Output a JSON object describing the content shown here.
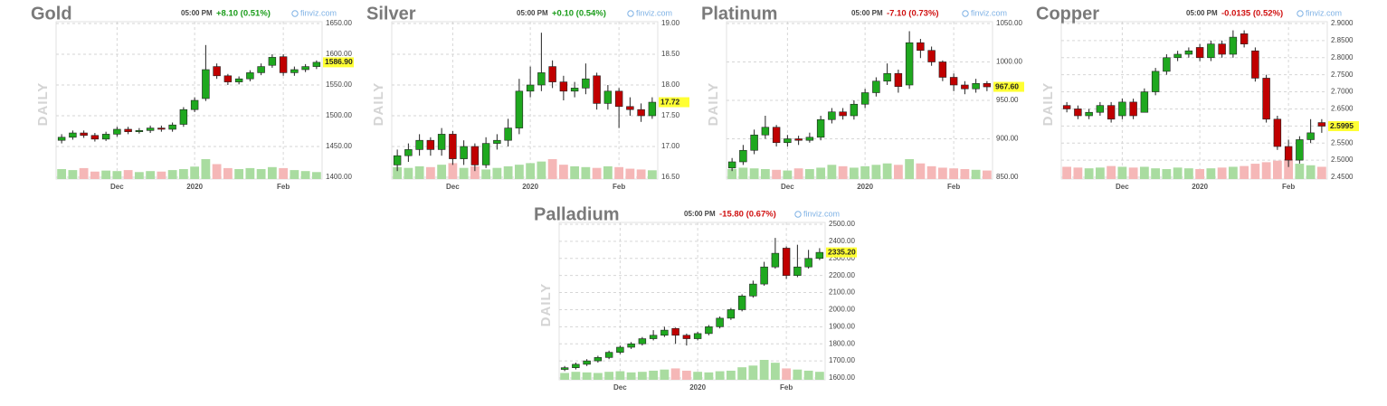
{
  "chart_data": [
    {
      "type": "candlestick",
      "title": "Gold",
      "time": "05:00 PM",
      "change": "+8.10 (0.51%)",
      "change_color": "#1a9c1a",
      "source": "finviz.com",
      "side_label": "DAILY",
      "up_color": "#1fa81f",
      "down_color": "#c00000",
      "volume_up_color": "#a9dca0",
      "volume_down_color": "#f5b7b7",
      "categories": [
        null,
        null,
        null,
        null,
        null,
        "Dec",
        null,
        null,
        null,
        null,
        null,
        null,
        "2020",
        null,
        null,
        null,
        null,
        null,
        null,
        null,
        "Feb",
        null,
        null,
        null
      ],
      "open": [
        1460,
        1465,
        1472,
        1468,
        1462,
        1470,
        1478,
        1474,
        1476,
        1480,
        1478,
        1486,
        1510,
        1528,
        1580,
        1565,
        1555,
        1560,
        1570,
        1582,
        1596,
        1570,
        1575,
        1580
      ],
      "high": [
        1470,
        1476,
        1476,
        1472,
        1474,
        1482,
        1482,
        1480,
        1484,
        1484,
        1489,
        1514,
        1530,
        1615,
        1585,
        1568,
        1564,
        1574,
        1585,
        1600,
        1600,
        1580,
        1584,
        1590
      ],
      "low": [
        1455,
        1461,
        1464,
        1458,
        1459,
        1466,
        1470,
        1471,
        1472,
        1474,
        1474,
        1482,
        1506,
        1524,
        1560,
        1550,
        1551,
        1556,
        1566,
        1578,
        1565,
        1565,
        1571,
        1576
      ],
      "close": [
        1465,
        1472,
        1468,
        1462,
        1470,
        1478,
        1474,
        1476,
        1480,
        1478,
        1485,
        1510,
        1525,
        1575,
        1565,
        1555,
        1560,
        1570,
        1580,
        1595,
        1570,
        1575,
        1580,
        1586.9
      ],
      "volume": [
        20,
        18,
        22,
        15,
        17,
        16,
        18,
        14,
        16,
        15,
        18,
        20,
        25,
        40,
        30,
        22,
        20,
        22,
        20,
        24,
        22,
        18,
        16,
        14
      ],
      "last": {
        "value": 1586.9,
        "label": "1586.90"
      },
      "ylim": [
        1400,
        1650
      ],
      "yticks": [
        {
          "value": 1400,
          "label": "1400.00"
        },
        {
          "value": 1450,
          "label": "1450.00"
        },
        {
          "value": 1500,
          "label": "1500.00"
        },
        {
          "value": 1550,
          "label": "1550.00"
        },
        {
          "value": 1600,
          "label": "1600.00"
        },
        {
          "value": 1650,
          "label": "1650.00"
        }
      ]
    },
    {
      "type": "candlestick",
      "title": "Silver",
      "time": "05:00 PM",
      "change": "+0.10 (0.54%)",
      "change_color": "#1a9c1a",
      "source": "finviz.com",
      "side_label": "DAILY",
      "up_color": "#1fa81f",
      "down_color": "#c00000",
      "volume_up_color": "#a9dca0",
      "volume_down_color": "#f5b7b7",
      "categories": [
        null,
        null,
        null,
        null,
        null,
        "Dec",
        null,
        null,
        null,
        null,
        null,
        null,
        "2020",
        null,
        null,
        null,
        null,
        null,
        null,
        null,
        "Feb",
        null,
        null,
        null
      ],
      "open": [
        16.7,
        16.85,
        16.95,
        17.1,
        16.95,
        17.2,
        16.8,
        17.0,
        16.7,
        17.05,
        17.1,
        17.3,
        17.9,
        18.0,
        18.3,
        18.05,
        17.9,
        17.95,
        18.15,
        17.7,
        17.9,
        17.65,
        17.6,
        17.5
      ],
      "high": [
        16.95,
        17.05,
        17.2,
        17.15,
        17.3,
        17.25,
        17.1,
        17.05,
        17.15,
        17.2,
        17.45,
        18.1,
        18.3,
        18.85,
        18.4,
        18.15,
        18.05,
        18.35,
        18.2,
        18.0,
        17.95,
        17.8,
        17.7,
        17.8
      ],
      "low": [
        16.6,
        16.75,
        16.85,
        16.85,
        16.85,
        16.7,
        16.7,
        16.6,
        16.65,
        16.95,
        17.0,
        17.2,
        17.8,
        17.9,
        17.95,
        17.75,
        17.8,
        17.85,
        17.6,
        17.6,
        17.3,
        17.5,
        17.4,
        17.45
      ],
      "close": [
        16.85,
        16.95,
        17.1,
        16.95,
        17.2,
        16.8,
        17.0,
        16.7,
        17.05,
        17.1,
        17.3,
        17.9,
        18.0,
        18.2,
        18.05,
        17.9,
        17.95,
        18.1,
        17.7,
        17.9,
        17.65,
        17.6,
        17.5,
        17.72
      ],
      "volume": [
        15,
        14,
        16,
        15,
        18,
        20,
        14,
        16,
        12,
        14,
        16,
        18,
        20,
        22,
        25,
        18,
        16,
        15,
        14,
        16,
        15,
        13,
        12,
        11
      ],
      "last": 17.72,
      "ylim": [
        16.5,
        19
      ],
      "yticks": [
        {
          "value": 16.5,
          "label": "16.50"
        },
        {
          "value": 17,
          "label": "17.00"
        },
        {
          "value": 17.5,
          "label": "17.50"
        },
        {
          "value": 18,
          "label": "18.00"
        },
        {
          "value": 18.5,
          "label": "18.50"
        },
        {
          "value": 19,
          "label": "19.00"
        }
      ]
    },
    {
      "type": "candlestick",
      "title": "Platinum",
      "time": "05:00 PM",
      "change": "-7.10 (0.73%)",
      "change_color": "#d01010",
      "source": "finviz.com",
      "side_label": "DAILY",
      "up_color": "#1fa81f",
      "down_color": "#c00000",
      "volume_up_color": "#a9dca0",
      "volume_down_color": "#f5b7b7",
      "categories": [
        null,
        null,
        null,
        null,
        null,
        "Dec",
        null,
        null,
        null,
        null,
        null,
        null,
        "2020",
        null,
        null,
        null,
        null,
        null,
        null,
        null,
        "Feb",
        null,
        null,
        null
      ],
      "open": [
        862,
        870,
        885,
        905,
        915,
        895,
        900,
        898,
        902,
        925,
        935,
        930,
        945,
        960,
        975,
        985,
        970,
        1025,
        1015,
        1000,
        980,
        970,
        965,
        972
      ],
      "high": [
        875,
        892,
        912,
        930,
        918,
        905,
        904,
        908,
        930,
        940,
        940,
        950,
        965,
        980,
        998,
        990,
        1040,
        1030,
        1020,
        1002,
        985,
        975,
        978,
        975
      ],
      "low": [
        858,
        866,
        880,
        900,
        890,
        890,
        892,
        895,
        898,
        920,
        925,
        925,
        940,
        955,
        970,
        960,
        965,
        1005,
        995,
        975,
        962,
        958,
        960,
        962
      ],
      "close": [
        870,
        885,
        905,
        915,
        895,
        900,
        898,
        902,
        925,
        935,
        930,
        945,
        960,
        975,
        985,
        968,
        1025,
        1015,
        1000,
        980,
        970,
        965,
        972,
        967.6
      ],
      "volume": [
        14,
        16,
        15,
        14,
        13,
        12,
        15,
        14,
        16,
        20,
        18,
        16,
        18,
        20,
        22,
        20,
        28,
        22,
        18,
        16,
        15,
        14,
        13,
        12
      ],
      "last": {
        "value": 967.6,
        "label": "967.60"
      },
      "ylim": [
        850,
        1050
      ],
      "yticks": [
        {
          "value": 850,
          "label": "850.00"
        },
        {
          "value": 900,
          "label": "900.00"
        },
        {
          "value": 950,
          "label": "950.00"
        },
        {
          "value": 1000,
          "label": "1000.00"
        },
        {
          "value": 1050,
          "label": "1050.00"
        }
      ]
    },
    {
      "type": "candlestick",
      "title": "Copper",
      "time": "05:00 PM",
      "change": "-0.0135 (0.52%)",
      "change_color": "#d01010",
      "source": "finviz.com",
      "side_label": "DAILY",
      "up_color": "#1fa81f",
      "down_color": "#c00000",
      "volume_up_color": "#a9dca0",
      "volume_down_color": "#f5b7b7",
      "categories": [
        null,
        null,
        null,
        null,
        null,
        "Dec",
        null,
        null,
        null,
        null,
        null,
        null,
        "2020",
        null,
        null,
        null,
        null,
        null,
        null,
        null,
        "Feb",
        null,
        null,
        null
      ],
      "open": [
        2.66,
        2.65,
        2.63,
        2.64,
        2.66,
        2.63,
        2.67,
        2.64,
        2.7,
        2.76,
        2.8,
        2.81,
        2.83,
        2.8,
        2.84,
        2.81,
        2.87,
        2.82,
        2.74,
        2.62,
        2.54,
        2.5,
        2.56,
        2.61
      ],
      "high": [
        2.67,
        2.66,
        2.65,
        2.67,
        2.67,
        2.68,
        2.68,
        2.71,
        2.77,
        2.81,
        2.82,
        2.83,
        2.84,
        2.85,
        2.85,
        2.88,
        2.88,
        2.83,
        2.75,
        2.63,
        2.56,
        2.57,
        2.62,
        2.62
      ],
      "low": [
        2.64,
        2.62,
        2.62,
        2.63,
        2.61,
        2.62,
        2.62,
        2.64,
        2.69,
        2.75,
        2.79,
        2.8,
        2.79,
        2.79,
        2.8,
        2.8,
        2.83,
        2.73,
        2.61,
        2.53,
        2.48,
        2.49,
        2.55,
        2.58
      ],
      "close": [
        2.65,
        2.63,
        2.64,
        2.66,
        2.62,
        2.67,
        2.63,
        2.7,
        2.76,
        2.8,
        2.81,
        2.82,
        2.8,
        2.84,
        2.81,
        2.86,
        2.84,
        2.74,
        2.62,
        2.54,
        2.5,
        2.56,
        2.58,
        2.5995
      ],
      "volume": [
        16,
        15,
        14,
        15,
        17,
        16,
        15,
        16,
        14,
        13,
        15,
        14,
        13,
        14,
        15,
        16,
        17,
        20,
        22,
        24,
        26,
        20,
        18,
        16
      ],
      "last": 2.5995,
      "ylim": [
        2.45,
        2.9
      ],
      "yticks": [
        {
          "value": 2.45,
          "label": "2.4500"
        },
        {
          "value": 2.5,
          "label": "2.5000"
        },
        {
          "value": 2.55,
          "label": "2.5500"
        },
        {
          "value": 2.6,
          "label": "2.6000"
        },
        {
          "value": 2.65,
          "label": "2.6500"
        },
        {
          "value": 2.7,
          "label": "2.7000"
        },
        {
          "value": 2.75,
          "label": "2.7500"
        },
        {
          "value": 2.8,
          "label": "2.8000"
        },
        {
          "value": 2.85,
          "label": "2.8500"
        },
        {
          "value": 2.9,
          "label": "2.9000"
        }
      ]
    },
    {
      "type": "candlestick",
      "title": "Palladium",
      "time": "05:00 PM",
      "change": "-15.80 (0.67%)",
      "change_color": "#d01010",
      "source": "finviz.com",
      "side_label": "DAILY",
      "up_color": "#1fa81f",
      "down_color": "#c00000",
      "volume_up_color": "#a9dca0",
      "volume_down_color": "#f5b7b7",
      "categories": [
        null,
        null,
        null,
        null,
        null,
        "Dec",
        null,
        null,
        null,
        null,
        null,
        null,
        "2020",
        null,
        null,
        null,
        null,
        null,
        null,
        null,
        "Feb",
        null,
        null,
        null
      ],
      "open": [
        1650,
        1660,
        1680,
        1700,
        1720,
        1750,
        1780,
        1800,
        1830,
        1850,
        1890,
        1850,
        1830,
        1860,
        1900,
        1950,
        2000,
        2080,
        2150,
        2250,
        2360,
        2200,
        2250,
        2300
      ],
      "high": [
        1670,
        1690,
        1710,
        1730,
        1760,
        1790,
        1810,
        1840,
        1880,
        1900,
        1895,
        1860,
        1870,
        1910,
        1960,
        2010,
        2090,
        2170,
        2280,
        2420,
        2370,
        2380,
        2350,
        2360
      ],
      "low": [
        1640,
        1650,
        1670,
        1690,
        1710,
        1740,
        1770,
        1790,
        1820,
        1840,
        1800,
        1790,
        1820,
        1850,
        1890,
        1940,
        1990,
        2070,
        2140,
        2240,
        2180,
        2190,
        2240,
        2290
      ],
      "close": [
        1660,
        1680,
        1700,
        1720,
        1750,
        1780,
        1800,
        1830,
        1850,
        1880,
        1850,
        1830,
        1860,
        1900,
        1950,
        2000,
        2080,
        2150,
        2250,
        2330,
        2200,
        2250,
        2300,
        2335.2
      ],
      "volume": [
        12,
        14,
        13,
        12,
        14,
        15,
        13,
        14,
        16,
        18,
        20,
        16,
        14,
        13,
        15,
        16,
        22,
        25,
        35,
        30,
        20,
        18,
        16,
        14
      ],
      "last": {
        "value": 2335.2,
        "label": "2335.20"
      },
      "ylim": [
        1600,
        2500
      ],
      "yticks": [
        {
          "value": 1600,
          "label": "1600.00"
        },
        {
          "value": 1700,
          "label": "1700.00"
        },
        {
          "value": 1800,
          "label": "1800.00"
        },
        {
          "value": 1900,
          "label": "1900.00"
        },
        {
          "value": 2000,
          "label": "2000.00"
        },
        {
          "value": 2100,
          "label": "2100.00"
        },
        {
          "value": 2200,
          "label": "2200.00"
        },
        {
          "value": 2300,
          "label": "2300.00"
        },
        {
          "value": 2400,
          "label": "2400.00"
        },
        {
          "value": 2500,
          "label": "2500.00"
        }
      ]
    }
  ]
}
